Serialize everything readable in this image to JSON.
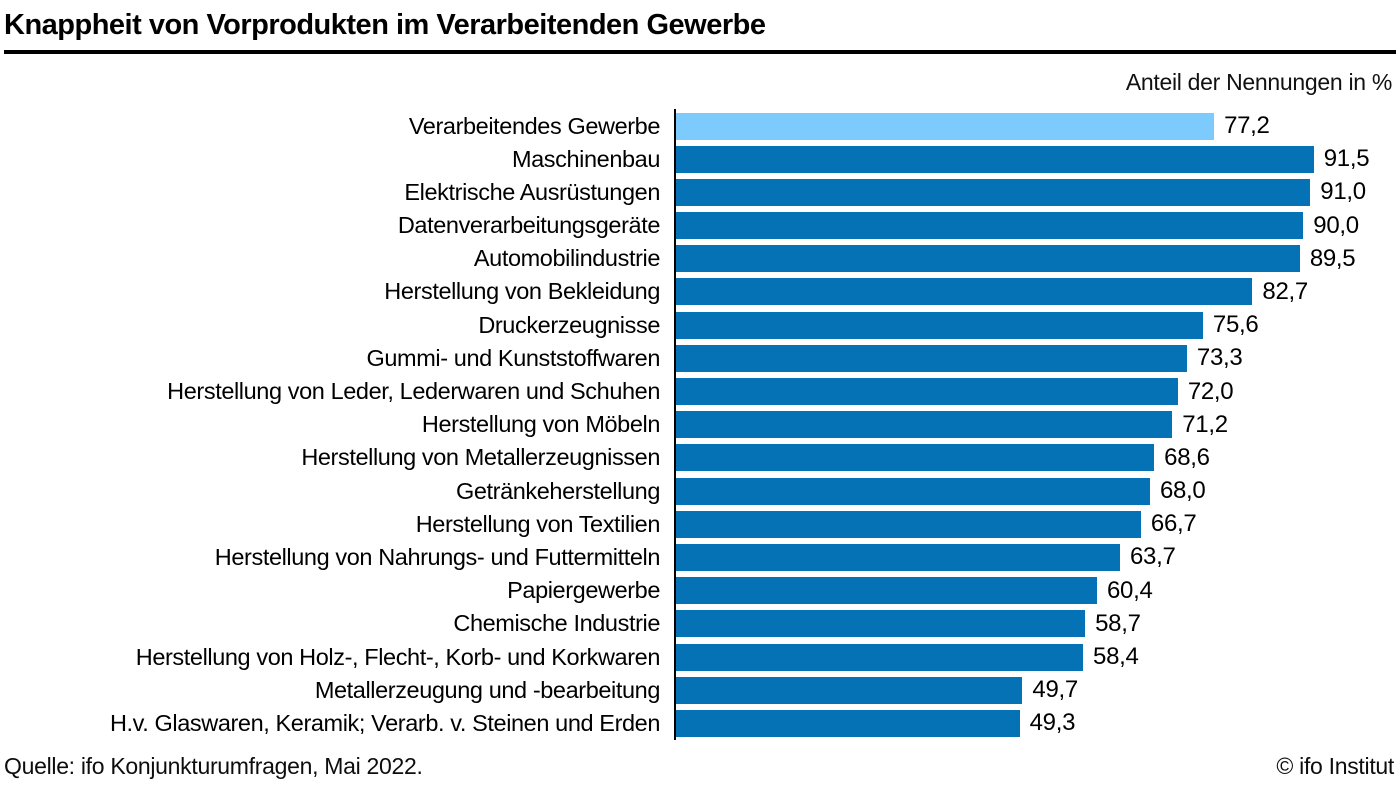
{
  "header": {
    "title": "Knappheit von Vorprodukten im Verarbeitenden Gewerbe"
  },
  "chart_data": {
    "type": "bar",
    "orientation": "horizontal",
    "title": "Knappheit von Vorprodukten im Verarbeitenden Gewerbe",
    "unit_label": "Anteil der Nennungen in %",
    "xlim": [
      0,
      100
    ],
    "grid": false,
    "legend": "none",
    "bar_color": "#0472b4",
    "highlight_color": "#7dcafc",
    "highlight_index": 0,
    "axis_color": "#000000",
    "categories": [
      "Verarbeitendes Gewerbe",
      "Maschinenbau",
      "Elektrische Ausrüstungen",
      "Datenverarbeitungsgeräte",
      "Automobilindustrie",
      "Herstellung von Bekleidung",
      "Druckerzeugnisse",
      "Gummi- und Kunststoffwaren",
      "Herstellung von Leder, Lederwaren und Schuhen",
      "Herstellung von Möbeln",
      "Herstellung von Metallerzeugnissen",
      "Getränkeherstellung",
      "Herstellung von Textilien",
      "Herstellung von Nahrungs- und Futtermitteln",
      "Papiergewerbe",
      "Chemische Industrie",
      "Herstellung von Holz-, Flecht-, Korb- und Korkwaren",
      "Metallerzeugung und -bearbeitung",
      "H.v. Glaswaren, Keramik; Verarb. v. Steinen und Erden"
    ],
    "values": [
      77.2,
      91.5,
      91.0,
      90.0,
      89.5,
      82.7,
      75.6,
      73.3,
      72.0,
      71.2,
      68.6,
      68.0,
      66.7,
      63.7,
      60.4,
      58.7,
      58.4,
      49.7,
      49.3
    ],
    "value_labels": [
      "77,2",
      "91,5",
      "91,0",
      "90,0",
      "89,5",
      "82,7",
      "75,6",
      "73,3",
      "72,0",
      "71,2",
      "68,6",
      "68,0",
      "66,7",
      "63,7",
      "60,4",
      "58,7",
      "58,4",
      "49,7",
      "49,3"
    ]
  },
  "footer": {
    "source": "Quelle: ifo Konjunkturumfragen, Mai 2022.",
    "copyright": "© ifo Institut"
  }
}
